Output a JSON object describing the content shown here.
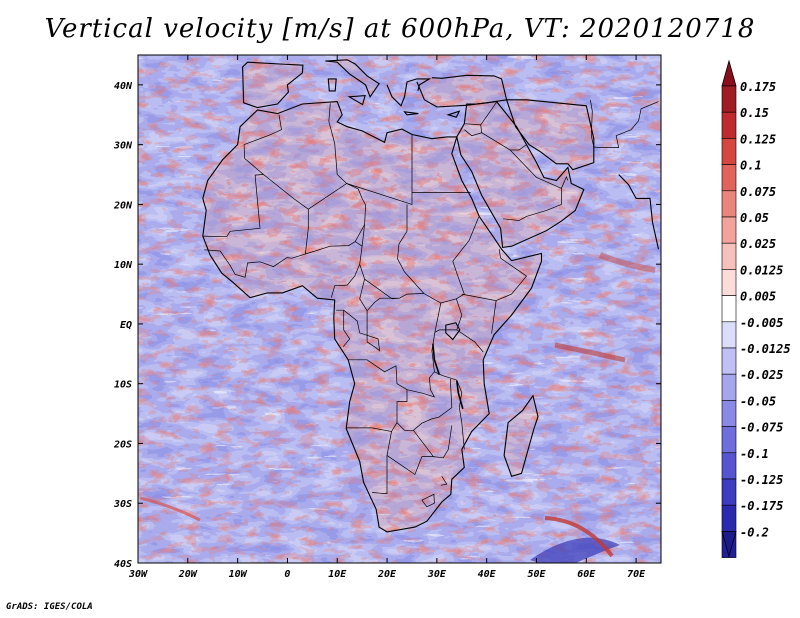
{
  "title": "Vertical velocity [m/s] at 600hPa, VT: 2020120718",
  "credit": "GrADS: IGES/COLA",
  "chart_data": {
    "type": "heatmap",
    "title": "Vertical velocity [m/s] at 600hPa, VT: 2020120718",
    "xlim": [
      -30,
      75
    ],
    "ylim": [
      -40,
      45
    ],
    "x_ticks": [
      "30W",
      "20W",
      "10W",
      "0",
      "10E",
      "20E",
      "30E",
      "40E",
      "50E",
      "60E",
      "70E"
    ],
    "y_ticks": [
      "40N",
      "30N",
      "20N",
      "10N",
      "EQ",
      "10S",
      "20S",
      "30S",
      "40S"
    ],
    "colorbar": {
      "levels": [
        {
          "label": "0.175",
          "color": "#a01c24"
        },
        {
          "label": "0.15",
          "color": "#be2a2e"
        },
        {
          "label": "0.125",
          "color": "#d4463f"
        },
        {
          "label": "0.1",
          "color": "#e0645c"
        },
        {
          "label": "0.075",
          "color": "#ea857d"
        },
        {
          "label": "0.05",
          "color": "#f2a39c"
        },
        {
          "label": "0.025",
          "color": "#f7c1bb"
        },
        {
          "label": "0.0125",
          "color": "#fbdcd8"
        },
        {
          "label": "0.005",
          "color": "#ffffff"
        },
        {
          "label": "-0.005",
          "color": "#dcdcfb"
        },
        {
          "label": "-0.0125",
          "color": "#c0c0f5"
        },
        {
          "label": "-0.025",
          "color": "#a6a6ef"
        },
        {
          "label": "-0.05",
          "color": "#8a8ae6"
        },
        {
          "label": "-0.075",
          "color": "#6e6edc"
        },
        {
          "label": "-0.1",
          "color": "#5555d0"
        },
        {
          "label": "-0.125",
          "color": "#3d3dc0"
        },
        {
          "label": "-0.175",
          "color": "#2a2aae"
        },
        {
          "label": "-0.2",
          "color": "#20209a"
        }
      ],
      "top_color": "#8b0e1c",
      "bottom_color": "#1a1a8a"
    }
  }
}
